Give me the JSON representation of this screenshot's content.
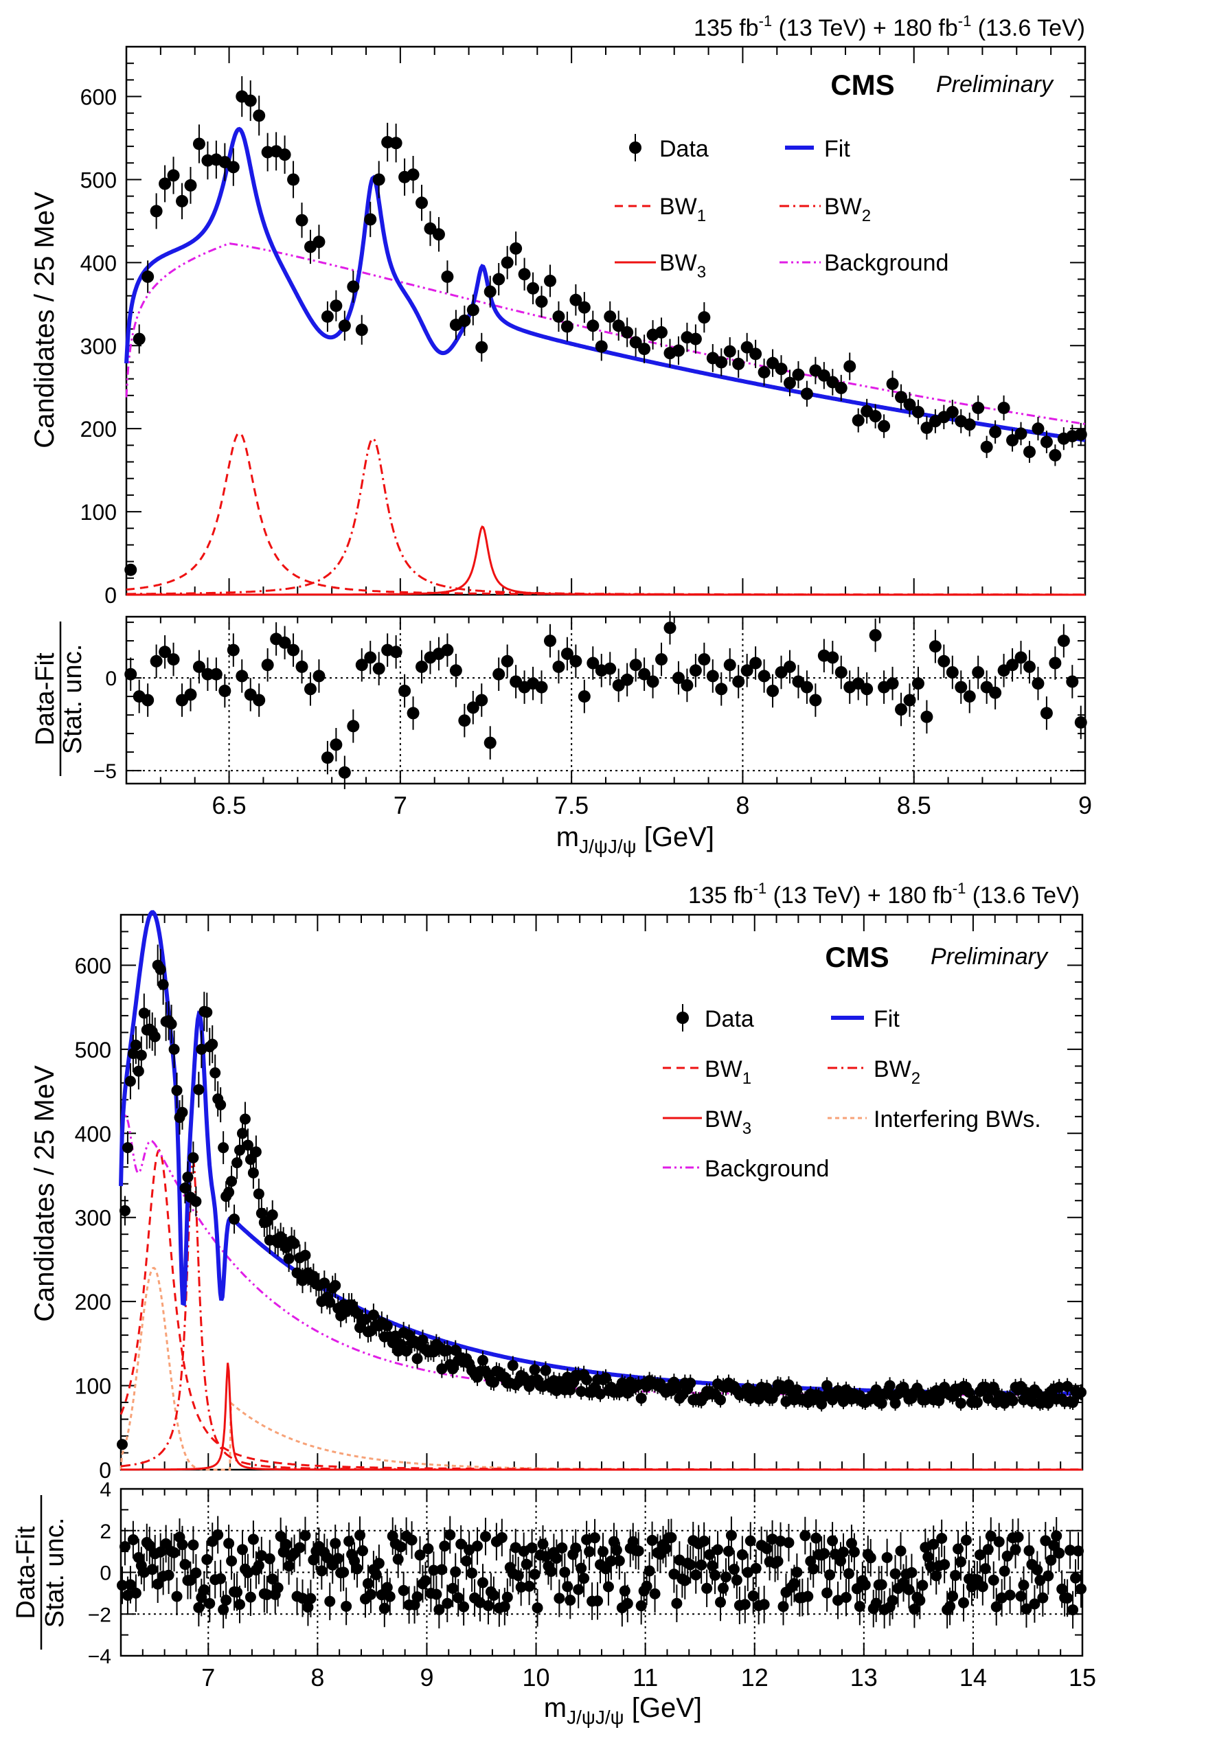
{
  "chart_data": [
    {
      "type": "line",
      "panel": "top",
      "lumi_label": "135 fb⁻¹ (13 TeV) + 180 fb⁻¹ (13.6 TeV)",
      "experiment": "CMS",
      "status": "Preliminary",
      "ylabel": "Candidates / 25 MeV",
      "xlabel": "m_J/ψJ/ψ [GeV]",
      "xlim": [
        6.2,
        9.0
      ],
      "ylim": [
        0,
        660
      ],
      "yticks": [
        0,
        100,
        200,
        300,
        400,
        500,
        600
      ],
      "xticks": [
        6.5,
        7,
        7.5,
        8,
        8.5,
        9
      ],
      "xtick_labels": [
        "6.5",
        "7",
        "7.5",
        "8",
        "8.5",
        "9"
      ],
      "legend": [
        {
          "label": "Data",
          "style": "marker",
          "color": "#000000"
        },
        {
          "label": "Fit",
          "style": "solid-thick",
          "color": "#1a1ae6"
        },
        {
          "label": "BW₁",
          "style": "dashed",
          "color": "#ee1111"
        },
        {
          "label": "BW₂",
          "style": "dashdot",
          "color": "#ee1111"
        },
        {
          "label": "BW₃",
          "style": "solid",
          "color": "#ee1111"
        },
        {
          "label": "Background",
          "style": "dashdotdot",
          "color": "#e01ee6"
        }
      ],
      "data": {
        "x": [
          6.2125,
          6.2375,
          6.2625,
          6.2875,
          6.3125,
          6.3375,
          6.3625,
          6.3875,
          6.4125,
          6.4375,
          6.4625,
          6.4875,
          6.5125,
          6.5375,
          6.5625,
          6.5875,
          6.6125,
          6.6375,
          6.6625,
          6.6875,
          6.7125,
          6.7375,
          6.7625,
          6.7875,
          6.8125,
          6.8375,
          6.8625,
          6.8875,
          6.9125,
          6.9375,
          6.9625,
          6.9875,
          7.0125,
          7.0375,
          7.0625,
          7.0875,
          7.1125,
          7.1375,
          7.1625,
          7.1875,
          7.2125,
          7.2375,
          7.2625,
          7.2875,
          7.3125,
          7.3375,
          7.3625,
          7.3875,
          7.4125,
          7.4375,
          7.4625,
          7.4875,
          7.5125,
          7.5375,
          7.5625,
          7.5875,
          7.6125,
          7.6375,
          7.6625,
          7.6875,
          7.7125,
          7.7375,
          7.7625,
          7.7875,
          7.8125,
          7.8375,
          7.8625,
          7.8875,
          7.9125,
          7.9375,
          7.9625,
          7.9875,
          8.0125,
          8.0375,
          8.0625,
          8.0875,
          8.1125,
          8.1375,
          8.1625,
          8.1875,
          8.2125,
          8.2375,
          8.2625,
          8.2875,
          8.3125,
          8.3375,
          8.3625,
          8.3875,
          8.4125,
          8.4375,
          8.4625,
          8.4875,
          8.5125,
          8.5375,
          8.5625,
          8.5875,
          8.6125,
          8.6375,
          8.6625,
          8.6875,
          8.7125,
          8.7375,
          8.7625,
          8.7875,
          8.8125,
          8.8375,
          8.8625,
          8.8875,
          8.9125,
          8.9375,
          8.9625,
          8.9875
        ],
        "y": [
          30,
          308,
          383,
          462,
          495,
          505,
          474,
          493,
          543,
          523,
          524,
          521,
          515,
          600,
          595,
          577,
          533,
          534,
          530,
          500,
          451,
          419,
          425,
          335,
          348,
          324,
          371,
          319,
          452,
          500,
          545,
          544,
          503,
          506,
          472,
          441,
          434,
          383,
          325,
          330,
          343,
          298,
          365,
          380,
          400,
          417,
          386,
          369,
          353,
          378,
          335,
          323,
          355,
          346,
          324,
          299,
          335,
          324,
          316,
          304,
          296,
          313,
          316,
          291,
          294,
          310,
          308,
          334,
          285,
          280,
          293,
          278,
          298,
          290,
          268,
          279,
          272,
          255,
          265,
          242,
          270,
          264,
          256,
          249,
          275,
          210,
          221,
          215,
          203,
          254,
          238,
          229,
          220,
          201,
          209,
          214,
          220,
          209,
          205,
          225,
          178,
          196,
          225,
          186,
          194,
          172,
          200,
          184,
          168,
          188,
          191,
          193
        ]
      },
      "pull": {
        "ylim": [
          -5.7,
          3.3
        ],
        "yticks": [
          -5,
          0
        ],
        "ylabel_top": "Data-Fit",
        "ylabel_bottom": "Stat. unc.",
        "values": [
          0.2,
          -1.0,
          -1.2,
          0.9,
          1.4,
          1.0,
          -1.2,
          -0.9,
          0.6,
          0.2,
          0.2,
          -0.7,
          1.5,
          0.1,
          -0.9,
          -1.2,
          0.7,
          2.1,
          1.9,
          1.5,
          0.6,
          -0.6,
          0.1,
          -4.3,
          -3.6,
          -5.1,
          -2.6,
          0.7,
          1.1,
          0.5,
          1.5,
          1.4,
          -0.7,
          -1.9,
          0.6,
          1.1,
          1.3,
          1.5,
          0.4,
          -2.3,
          -1.6,
          -1.2,
          -3.5,
          0.2,
          0.9,
          -0.2,
          -0.5,
          -0.3,
          -0.5,
          2.0,
          0.6,
          1.3,
          0.9,
          -1.0,
          0.8,
          0.4,
          0.5,
          -0.4,
          -0.1,
          0.7,
          0.2,
          -0.2,
          1.0,
          2.7,
          0.0,
          -0.4,
          0.4,
          1.0,
          0.1,
          -0.6,
          0.7,
          -0.2,
          0.4,
          0.8,
          0.1,
          -0.7,
          0.3,
          0.6,
          -0.2,
          -0.5,
          -1.2,
          1.2,
          1.1,
          0.3,
          -0.5,
          -0.3,
          -0.6,
          2.3,
          -0.5,
          -0.3,
          -1.7,
          -1.2,
          -0.3,
          -2.1,
          1.7,
          0.9,
          0.3,
          -0.5,
          -1.0,
          0.3,
          -0.5,
          -0.8,
          0.4,
          0.7,
          1.1,
          0.6,
          -0.3,
          -1.9,
          0.8,
          2.0,
          -0.2,
          -2.4
        ]
      }
    },
    {
      "type": "line",
      "panel": "bottom",
      "lumi_label": "135 fb⁻¹ (13 TeV) + 180 fb⁻¹ (13.6 TeV)",
      "experiment": "CMS",
      "status": "Preliminary",
      "ylabel": "Candidates / 25 MeV",
      "xlabel": "m_J/ψJ/ψ [GeV]",
      "xlim": [
        6.2,
        15.0
      ],
      "ylim": [
        0,
        660
      ],
      "yticks": [
        0,
        100,
        200,
        300,
        400,
        500,
        600
      ],
      "xticks": [
        7,
        8,
        9,
        10,
        11,
        12,
        13,
        14,
        15
      ],
      "xtick_labels": [
        "7",
        "8",
        "9",
        "10",
        "11",
        "12",
        "13",
        "14",
        "15"
      ],
      "legend": [
        {
          "label": "Data",
          "style": "marker",
          "color": "#000000"
        },
        {
          "label": "Fit",
          "style": "solid-thick",
          "color": "#1a1ae6"
        },
        {
          "label": "BW₁",
          "style": "dashed",
          "color": "#ee1111"
        },
        {
          "label": "BW₂",
          "style": "dashdot",
          "color": "#ee1111"
        },
        {
          "label": "BW₃",
          "style": "solid",
          "color": "#ee1111"
        },
        {
          "label": "Interfering BWs.",
          "style": "dotted",
          "color": "#f7a278"
        },
        {
          "label": "Background",
          "style": "dashdotdot",
          "color": "#e01ee6"
        }
      ],
      "data_note": "data points at 25 MeV bins from 6.2125 to 14.9875 GeV, dense region",
      "data": {
        "x_start": 6.2125,
        "x_step": 0.025,
        "n": 352,
        "y_low_mass": [
          30,
          308,
          383,
          462,
          495,
          505,
          474,
          493,
          543,
          523,
          524,
          521,
          515,
          600,
          595,
          577,
          533,
          534,
          530,
          500,
          451,
          419,
          425,
          335,
          348,
          324,
          371,
          319,
          452,
          500,
          545,
          544,
          503,
          506,
          472,
          441,
          434,
          383,
          325,
          330,
          343,
          298,
          365,
          380,
          400,
          417,
          386,
          369,
          353,
          378
        ],
        "background_level_high_mass": 90
      },
      "pull": {
        "ylim": [
          -4,
          4
        ],
        "yticks": [
          -4,
          -2,
          0,
          2,
          4
        ],
        "ylabel_top": "Data-Fit",
        "ylabel_bottom": "Stat. unc."
      }
    }
  ],
  "labels": {
    "lumi": "135 fb⁻¹ (13 TeV) + 180 fb⁻¹ (13.6 TeV)",
    "lumi_a": "135 fb",
    "lumi_sup": "-1",
    "lumi_b": " (13 TeV) + 180 fb",
    "lumi_c": " (13.6 TeV)",
    "cms": "CMS",
    "prelim": "Preliminary",
    "ylabel": "Candidates / 25 MeV",
    "pull_top": "Data-Fit",
    "pull_bottom": "Stat. unc.",
    "xlabel_m": "m",
    "xlabel_sub": "J/ψJ/ψ",
    "xlabel_unit": " [GeV]",
    "bw": "BW",
    "sub1": "1",
    "sub2": "2",
    "sub3": "3"
  }
}
